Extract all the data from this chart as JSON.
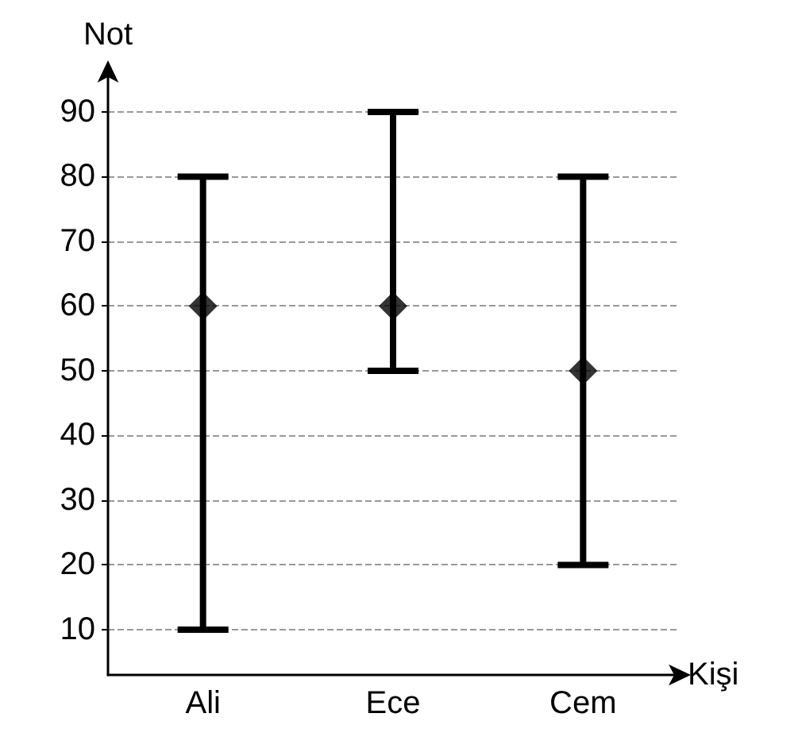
{
  "chart_data": {
    "type": "scatter",
    "xlabel": "Kişi",
    "ylabel": "Not",
    "categories": [
      "Ali",
      "Ece",
      "Cem"
    ],
    "values": [
      60,
      60,
      50
    ],
    "errors": [
      [
        10,
        80
      ],
      [
        50,
        90
      ],
      [
        20,
        80
      ]
    ],
    "color": "#000000",
    "marker": "diamond",
    "ylim": [
      3,
      96
    ],
    "yticks": [
      10,
      20,
      30,
      40,
      50,
      60,
      70,
      80,
      90
    ],
    "grid": "y"
  }
}
